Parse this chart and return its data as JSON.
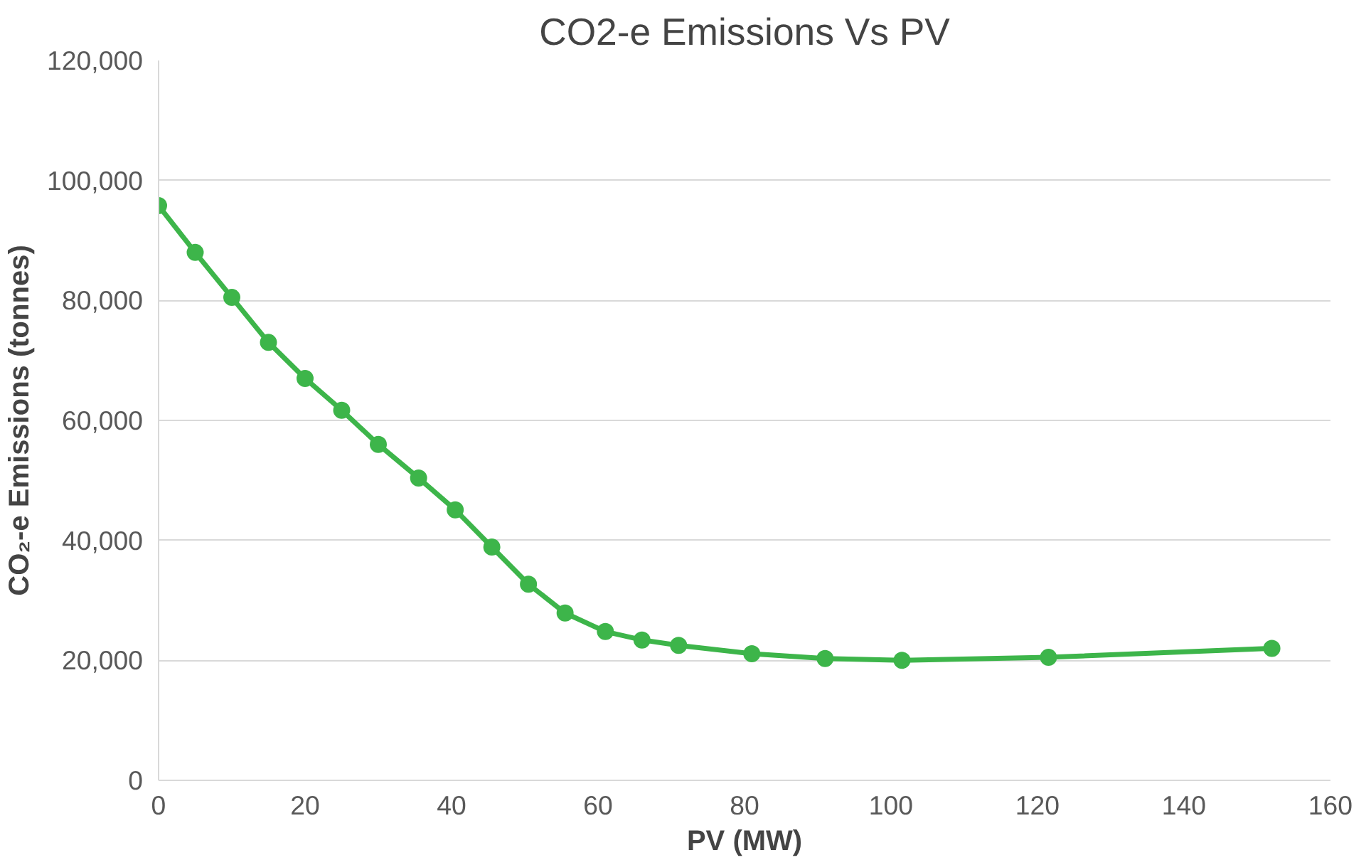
{
  "chart_data": {
    "type": "line",
    "title": "CO2-e Emissions Vs PV",
    "xlabel": "PV (MW)",
    "ylabel": "CO₂-e Emissions (tonnes)",
    "x": [
      0,
      5,
      10,
      15,
      20,
      25,
      30,
      35.5,
      40.5,
      45.5,
      50.5,
      55.5,
      61,
      66,
      71,
      81,
      91,
      101.5,
      121.5,
      152
    ],
    "series": [
      {
        "color": "#3db54a",
        "values": [
          95800,
          88000,
          80500,
          73000,
          67000,
          61700,
          56000,
          50400,
          45100,
          38900,
          32700,
          27900,
          24800,
          23400,
          22500,
          21100,
          20300,
          20000,
          20500,
          22000
        ]
      }
    ],
    "xlim": [
      0,
      160
    ],
    "xticks": [
      0,
      20,
      40,
      60,
      80,
      100,
      120,
      140,
      160
    ],
    "ylim": [
      0,
      120000
    ],
    "yticks": [
      {
        "value": 0,
        "label": "0"
      },
      {
        "value": 20000,
        "label": "20,000"
      },
      {
        "value": 40000,
        "label": "40,000"
      },
      {
        "value": 60000,
        "label": "60,000"
      },
      {
        "value": 80000,
        "label": "80,000"
      },
      {
        "value": 100000,
        "label": "100,000"
      },
      {
        "value": 120000,
        "label": "120,000"
      }
    ],
    "grid": "y",
    "marker": "circle",
    "line_style": "solid"
  }
}
